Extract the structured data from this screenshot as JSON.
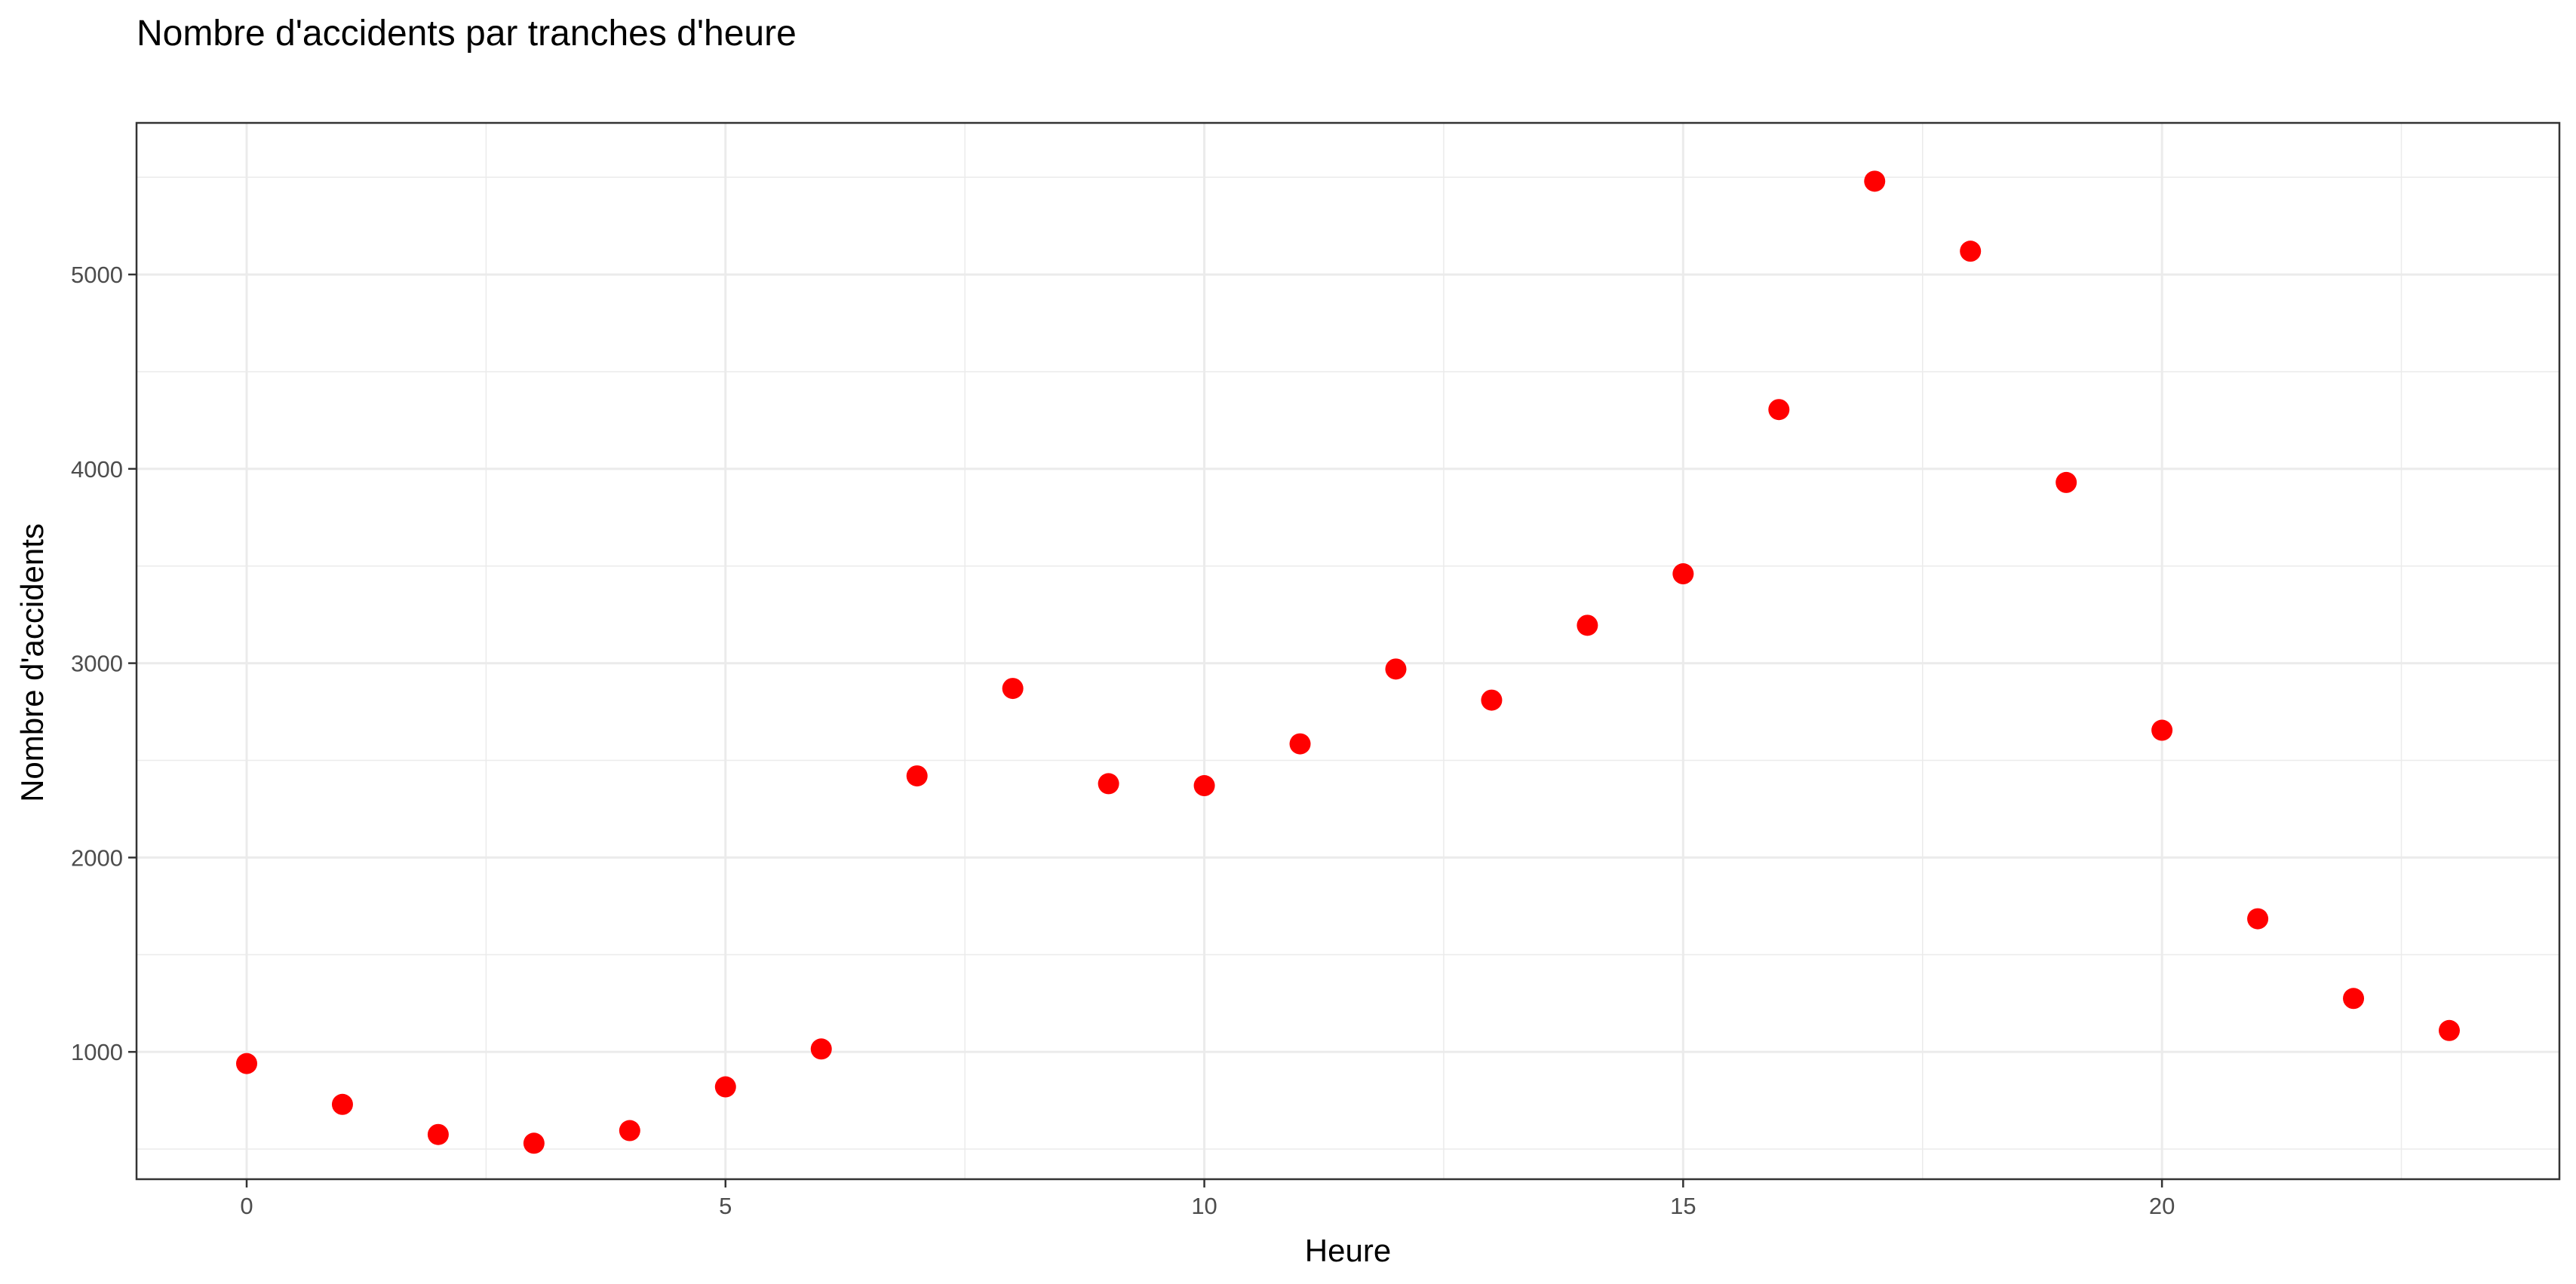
{
  "chart_data": {
    "type": "scatter",
    "title": "Nombre d'accidents par tranches d'heure",
    "xlabel": "Heure",
    "ylabel": "Nombre d'accidents",
    "xlim": [
      -1.15,
      24.15
    ],
    "ylim": [
      345,
      5780
    ],
    "x_ticks": [
      0,
      5,
      10,
      15,
      20
    ],
    "x_tick_labels": [
      "0",
      "5",
      "10",
      "15",
      "20"
    ],
    "x_minor_ticks": [
      2.5,
      7.5,
      12.5,
      17.5,
      22.5
    ],
    "y_ticks": [
      1000,
      2000,
      3000,
      4000,
      5000
    ],
    "y_tick_labels": [
      "1000",
      "2000",
      "3000",
      "4000",
      "5000"
    ],
    "y_minor_ticks": [
      500,
      1500,
      2500,
      3500,
      4500,
      5500
    ],
    "grid": true,
    "point_color": "#ff0000",
    "grid_color": "#ebebeb",
    "panel_border_color": "#333333",
    "series": [
      {
        "x": [
          0,
          1,
          2,
          3,
          4,
          5,
          6,
          7,
          8,
          9,
          10,
          11,
          12,
          13,
          14,
          15,
          16,
          17,
          18,
          19,
          20,
          21,
          22,
          23
        ],
        "y": [
          940,
          730,
          575,
          530,
          595,
          820,
          1015,
          2420,
          2870,
          2380,
          2370,
          2585,
          2970,
          2810,
          3195,
          3460,
          4305,
          5480,
          5120,
          3930,
          2655,
          1685,
          1275,
          1110
        ]
      }
    ]
  }
}
